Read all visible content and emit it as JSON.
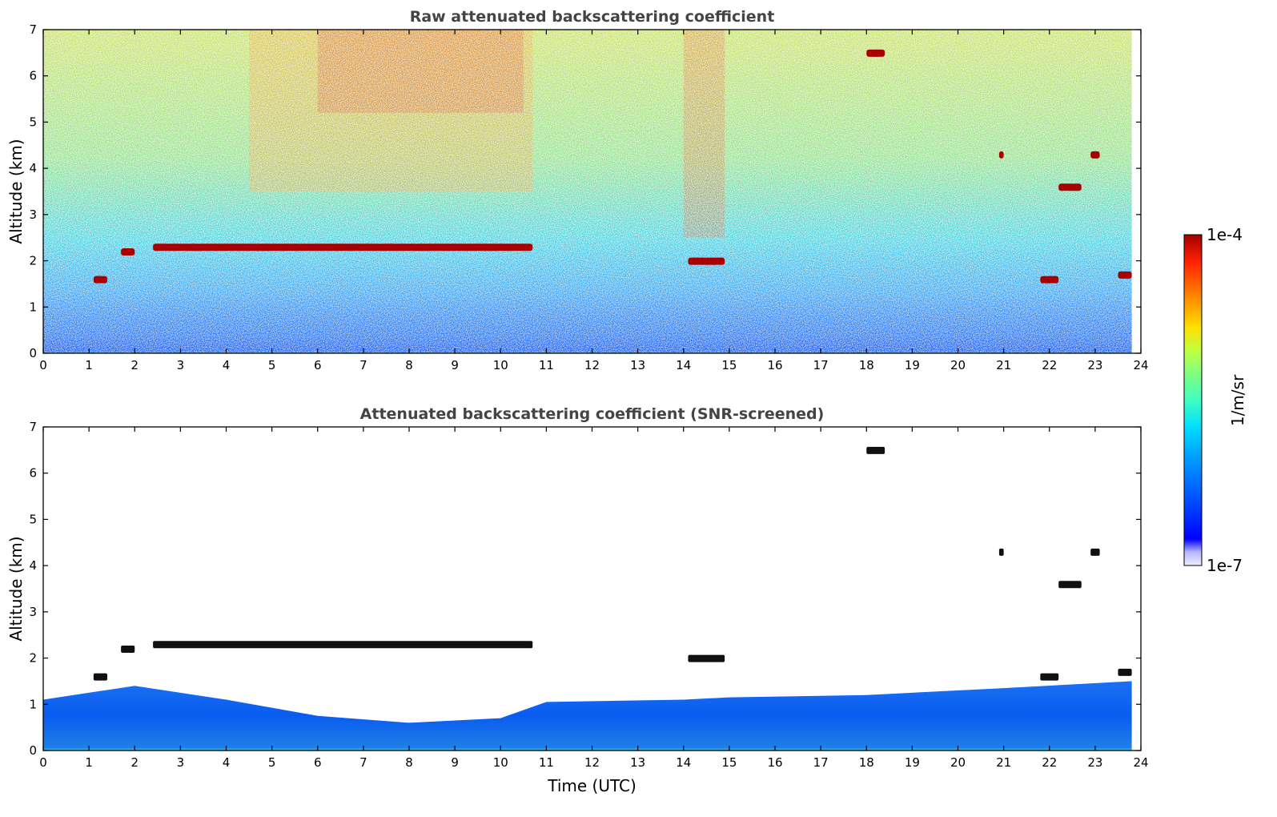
{
  "chart_data": [
    {
      "type": "heatmap",
      "title": "Raw attenuated backscattering coefficient",
      "xlabel": "",
      "ylabel": "Altitude (km)",
      "xlim": [
        0,
        24
      ],
      "ylim": [
        0,
        7
      ],
      "xticks": [
        0,
        1,
        2,
        3,
        4,
        5,
        6,
        7,
        8,
        9,
        10,
        11,
        12,
        13,
        14,
        15,
        16,
        17,
        18,
        19,
        20,
        21,
        22,
        23,
        24
      ],
      "yticks": [
        0,
        1,
        2,
        3,
        4,
        5,
        6,
        7
      ],
      "data_end_time": 23.8,
      "screened": false,
      "cloud_layers": [
        {
          "start": 1.7,
          "end": 2.0,
          "altitude": 2.2
        },
        {
          "start": 2.4,
          "end": 10.7,
          "altitude": 2.3
        },
        {
          "start": 1.1,
          "end": 1.4,
          "altitude": 1.6
        },
        {
          "start": 14.1,
          "end": 14.9,
          "altitude": 2.0
        },
        {
          "start": 18.0,
          "end": 18.4,
          "altitude": 6.5
        },
        {
          "start": 20.9,
          "end": 21.0,
          "altitude": 4.3
        },
        {
          "start": 22.2,
          "end": 22.7,
          "altitude": 3.6
        },
        {
          "start": 22.9,
          "end": 23.1,
          "altitude": 4.3
        },
        {
          "start": 21.8,
          "end": 22.2,
          "altitude": 1.6
        },
        {
          "start": 23.5,
          "end": 23.8,
          "altitude": 1.7
        }
      ]
    },
    {
      "type": "heatmap",
      "title": "Attenuated backscattering coefficient (SNR-screened)",
      "xlabel": "Time (UTC)",
      "ylabel": "Altitude (km)",
      "xlim": [
        0,
        24
      ],
      "ylim": [
        0,
        7
      ],
      "xticks": [
        0,
        1,
        2,
        3,
        4,
        5,
        6,
        7,
        8,
        9,
        10,
        11,
        12,
        13,
        14,
        15,
        16,
        17,
        18,
        19,
        20,
        21,
        22,
        23,
        24
      ],
      "yticks": [
        0,
        1,
        2,
        3,
        4,
        5,
        6,
        7
      ],
      "data_end_time": 23.8,
      "screened": true,
      "boundary_layer_top": [
        {
          "time": 0,
          "altitude": 1.1
        },
        {
          "time": 2,
          "altitude": 1.4
        },
        {
          "time": 4,
          "altitude": 1.1
        },
        {
          "time": 6,
          "altitude": 0.75
        },
        {
          "time": 8,
          "altitude": 0.6
        },
        {
          "time": 10,
          "altitude": 0.7
        },
        {
          "time": 11,
          "altitude": 1.05
        },
        {
          "time": 14,
          "altitude": 1.1
        },
        {
          "time": 15,
          "altitude": 1.15
        },
        {
          "time": 18,
          "altitude": 1.2
        },
        {
          "time": 21,
          "altitude": 1.35
        },
        {
          "time": 23.8,
          "altitude": 1.5
        }
      ]
    }
  ],
  "colorbar": {
    "label": "1/m/sr",
    "max_label": "1e-4",
    "min_label": "1e-7",
    "colors": [
      "#eeeeff",
      "#b8b8ff",
      "#0000ff",
      "#0050ff",
      "#00a0ff",
      "#00dfff",
      "#40ffc0",
      "#80ff80",
      "#c0ff40",
      "#ffe000",
      "#ff8000",
      "#ff2000",
      "#a00000"
    ]
  }
}
